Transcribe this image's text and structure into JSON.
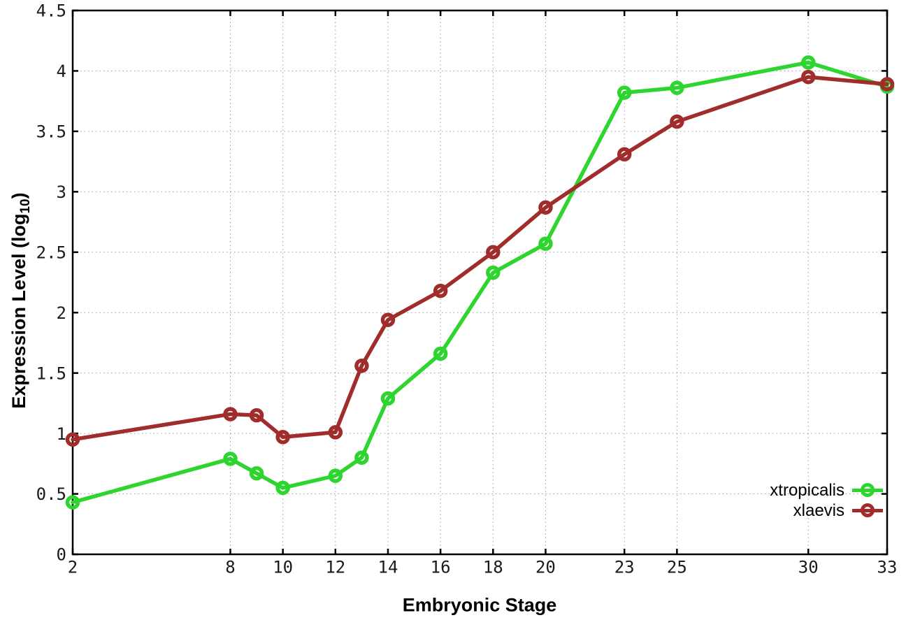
{
  "chart_data": {
    "type": "line",
    "title": "",
    "xlabel": "Embryonic Stage",
    "ylabel_main": "Expression Level (log",
    "ylabel_sub": "10",
    "ylabel_close": ")",
    "x": [
      2,
      8,
      9,
      10,
      12,
      13,
      14,
      16,
      18,
      20,
      23,
      25,
      30,
      33
    ],
    "series": [
      {
        "name": "xtropicalis",
        "color": "#2ed52e",
        "values": [
          0.43,
          0.79,
          0.67,
          0.55,
          0.65,
          0.8,
          1.29,
          1.66,
          2.33,
          2.57,
          3.82,
          3.86,
          4.07,
          3.87
        ]
      },
      {
        "name": "xlaevis",
        "color": "#a02c2c",
        "values": [
          0.95,
          1.16,
          1.15,
          0.97,
          1.01,
          1.56,
          1.94,
          2.18,
          2.5,
          2.87,
          3.31,
          3.58,
          3.95,
          3.89
        ]
      }
    ],
    "xlim": [
      2,
      33
    ],
    "ylim": [
      0,
      4.5
    ],
    "x_ticks": [
      "2",
      "8",
      "10",
      "12",
      "14",
      "16",
      "18",
      "20",
      "23",
      "25",
      "30",
      "33"
    ],
    "y_ticks": [
      "0",
      "0.5",
      "1",
      "1.5",
      "2",
      "2.5",
      "3",
      "3.5",
      "4",
      "4.5"
    ],
    "grid": "dotted",
    "legend_position": "bottom-right",
    "axis_color": "#000000",
    "grid_color": "#9a9a9a",
    "tick_label_color": "#1a1a1a"
  }
}
